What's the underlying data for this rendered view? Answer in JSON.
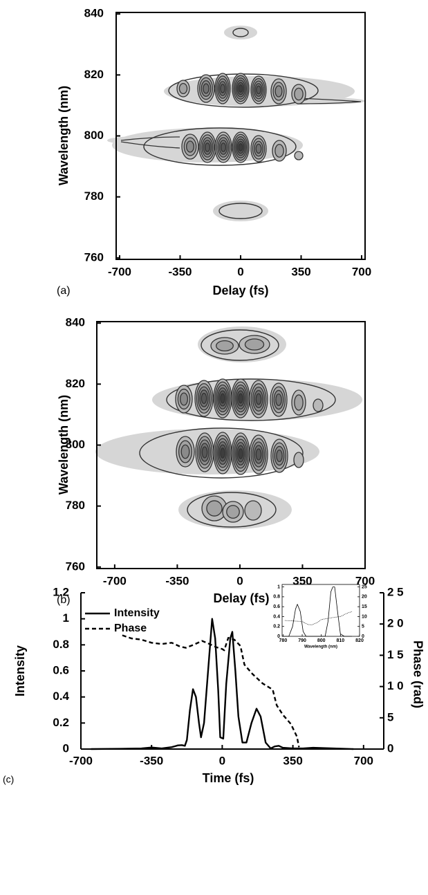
{
  "chart_data": [
    {
      "type": "contour",
      "panel_label": "(a)",
      "xlabel": "Delay (fs)",
      "ylabel": "Wavelength (nm)",
      "xlim": [
        -720,
        720
      ],
      "xticks": [
        -700,
        -350,
        0,
        350,
        700
      ],
      "ylim": [
        759.5,
        840.5
      ],
      "yticks": [
        760,
        780,
        800,
        820,
        840
      ]
    },
    {
      "type": "contour",
      "panel_label": "(b)",
      "xlabel": "Delay (fs)",
      "ylabel": "Wavelength (nm)",
      "xlim": [
        -800,
        700
      ],
      "xticks": [
        -700,
        -350,
        0,
        350,
        700
      ],
      "ylim": [
        759.5,
        840.5
      ],
      "yticks": [
        760,
        780,
        800,
        820,
        840
      ]
    },
    {
      "type": "line",
      "panel_label": "(c)",
      "xlabel": "Time (fs)",
      "ylabel": "Intensity",
      "y2label": "Phase (rad)",
      "legend": "upper left",
      "xlim": [
        -700,
        800
      ],
      "xticks": [
        -700,
        -350,
        0,
        350,
        700
      ],
      "ylim": [
        0,
        1.2
      ],
      "yticks": [
        0,
        0.2,
        0.4,
        0.6,
        0.8,
        1,
        1.2
      ],
      "y2lim": [
        0,
        25
      ],
      "y2ticks": [
        0,
        5,
        {
          "value": 10,
          "label": "1 0"
        },
        {
          "value": 15,
          "label": "1 5"
        },
        {
          "value": 20,
          "label": "2 0"
        },
        {
          "value": 25,
          "label": "2 5"
        }
      ],
      "series": [
        {
          "name": "Intensity",
          "color": "#000000",
          "dash": false,
          "x": [
            -650,
            -500,
            -400,
            -350,
            -300,
            -250,
            -220,
            -200,
            -185,
            -175,
            -160,
            -145,
            -130,
            -115,
            -105,
            -90,
            -65,
            -50,
            -35,
            -20,
            -10,
            5,
            20,
            40,
            50,
            65,
            80,
            100,
            120,
            145,
            170,
            190,
            215,
            240,
            260,
            280,
            300,
            350,
            400,
            450,
            650
          ],
          "values": [
            0,
            0.002,
            0.005,
            0.012,
            0.005,
            0.015,
            0.028,
            0.03,
            0.025,
            0.07,
            0.3,
            0.46,
            0.4,
            0.2,
            0.09,
            0.2,
            0.7,
            1.0,
            0.85,
            0.45,
            0.09,
            0.08,
            0.5,
            0.85,
            0.9,
            0.6,
            0.25,
            0.05,
            0.05,
            0.2,
            0.31,
            0.25,
            0.05,
            0.005,
            0.02,
            0.025,
            0.01,
            0.005,
            0.005,
            0.01,
            0
          ]
        },
        {
          "name": "Phase",
          "color": "#000000",
          "dash": true,
          "axis": "y2",
          "x": [
            -495,
            -450,
            -400,
            -350,
            -300,
            -250,
            -210,
            -180,
            -140,
            -100,
            -70,
            -30,
            0,
            10,
            30,
            60,
            90,
            110,
            150,
            200,
            250,
            270,
            300,
            340,
            370,
            380
          ],
          "values": [
            18.2,
            17.7,
            17.5,
            17.0,
            16.8,
            17.0,
            16.4,
            16.2,
            16.7,
            17.3,
            16.9,
            16.3,
            16.0,
            15.8,
            17.8,
            17.5,
            16.5,
            13.5,
            12,
            10.5,
            9.5,
            7,
            5.5,
            4,
            2,
            0.3
          ]
        }
      ]
    },
    {
      "type": "line",
      "xlabel": "Wavelength (nm)",
      "xlim": [
        779.5,
        820
      ],
      "xticks": [
        780,
        790,
        800,
        810,
        820
      ],
      "ylim": [
        0,
        1.05
      ],
      "yticks": [
        0,
        0.2,
        0.4,
        0.6,
        0.8,
        1
      ],
      "y2lim": [
        0,
        26.25
      ],
      "y2ticks": [
        0,
        5,
        10,
        15,
        20,
        25
      ],
      "series": [
        {
          "color": "#000000",
          "dash": false,
          "x": [
            780,
            783,
            785,
            786.5,
            787.5,
            789,
            790.5,
            792,
            802,
            803.5,
            805,
            806,
            807,
            808.5,
            810,
            812,
            816
          ],
          "values": [
            0,
            0,
            0.2,
            0.55,
            0.65,
            0.5,
            0.1,
            0,
            0,
            0.3,
            0.9,
            1.0,
            1.0,
            0.5,
            0.05,
            0,
            0
          ]
        },
        {
          "color": "#000000",
          "dash": true,
          "axis": "y2",
          "x": [
            781,
            785,
            790,
            793,
            795,
            798,
            800,
            803,
            806,
            810,
            813,
            816
          ],
          "values": [
            8,
            7.8,
            7.5,
            6,
            5.8,
            7,
            8.5,
            9,
            9.5,
            10,
            11.5,
            12.5
          ]
        }
      ]
    }
  ]
}
